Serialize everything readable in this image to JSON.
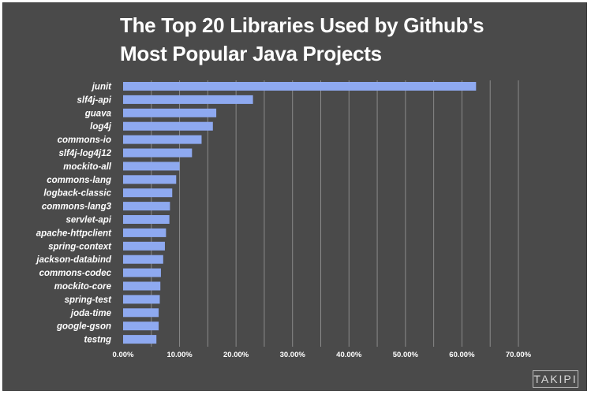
{
  "chart_data": {
    "type": "bar",
    "orientation": "horizontal",
    "title": "The Top 20 Libraries Used by Github's Most Popular Java Projects",
    "title_lines": [
      "The Top 20 Libraries Used by Github's",
      "Most Popular Java Projects"
    ],
    "categories": [
      "junit",
      "slf4j-api",
      "guava",
      "log4j",
      "commons-io",
      "slf4j-log4j12",
      "mockito-all",
      "commons-lang",
      "logback-classic",
      "commons-lang3",
      "servlet-api",
      "apache-httpclient",
      "spring-context",
      "jackson-databind",
      "commons-codec",
      "mockito-core",
      "spring-test",
      "joda-time",
      "google-gson",
      "testng"
    ],
    "values": [
      62.5,
      23.0,
      16.5,
      15.9,
      13.9,
      12.2,
      10.0,
      9.4,
      8.7,
      8.3,
      8.2,
      7.6,
      7.4,
      7.1,
      6.7,
      6.6,
      6.5,
      6.3,
      6.3,
      5.9
    ],
    "xlim": [
      0,
      70
    ],
    "x_ticks": [
      "0.00%",
      "10.00%",
      "20.00%",
      "30.00%",
      "40.00%",
      "50.00%",
      "60.00%",
      "70.00%"
    ],
    "grid": true,
    "bar_color": "#8ea9f0",
    "background_color": "#4a4a4a",
    "text_color": "#ffffff",
    "grid_color": "#8a8a8a"
  },
  "watermark": "TAKIPI"
}
